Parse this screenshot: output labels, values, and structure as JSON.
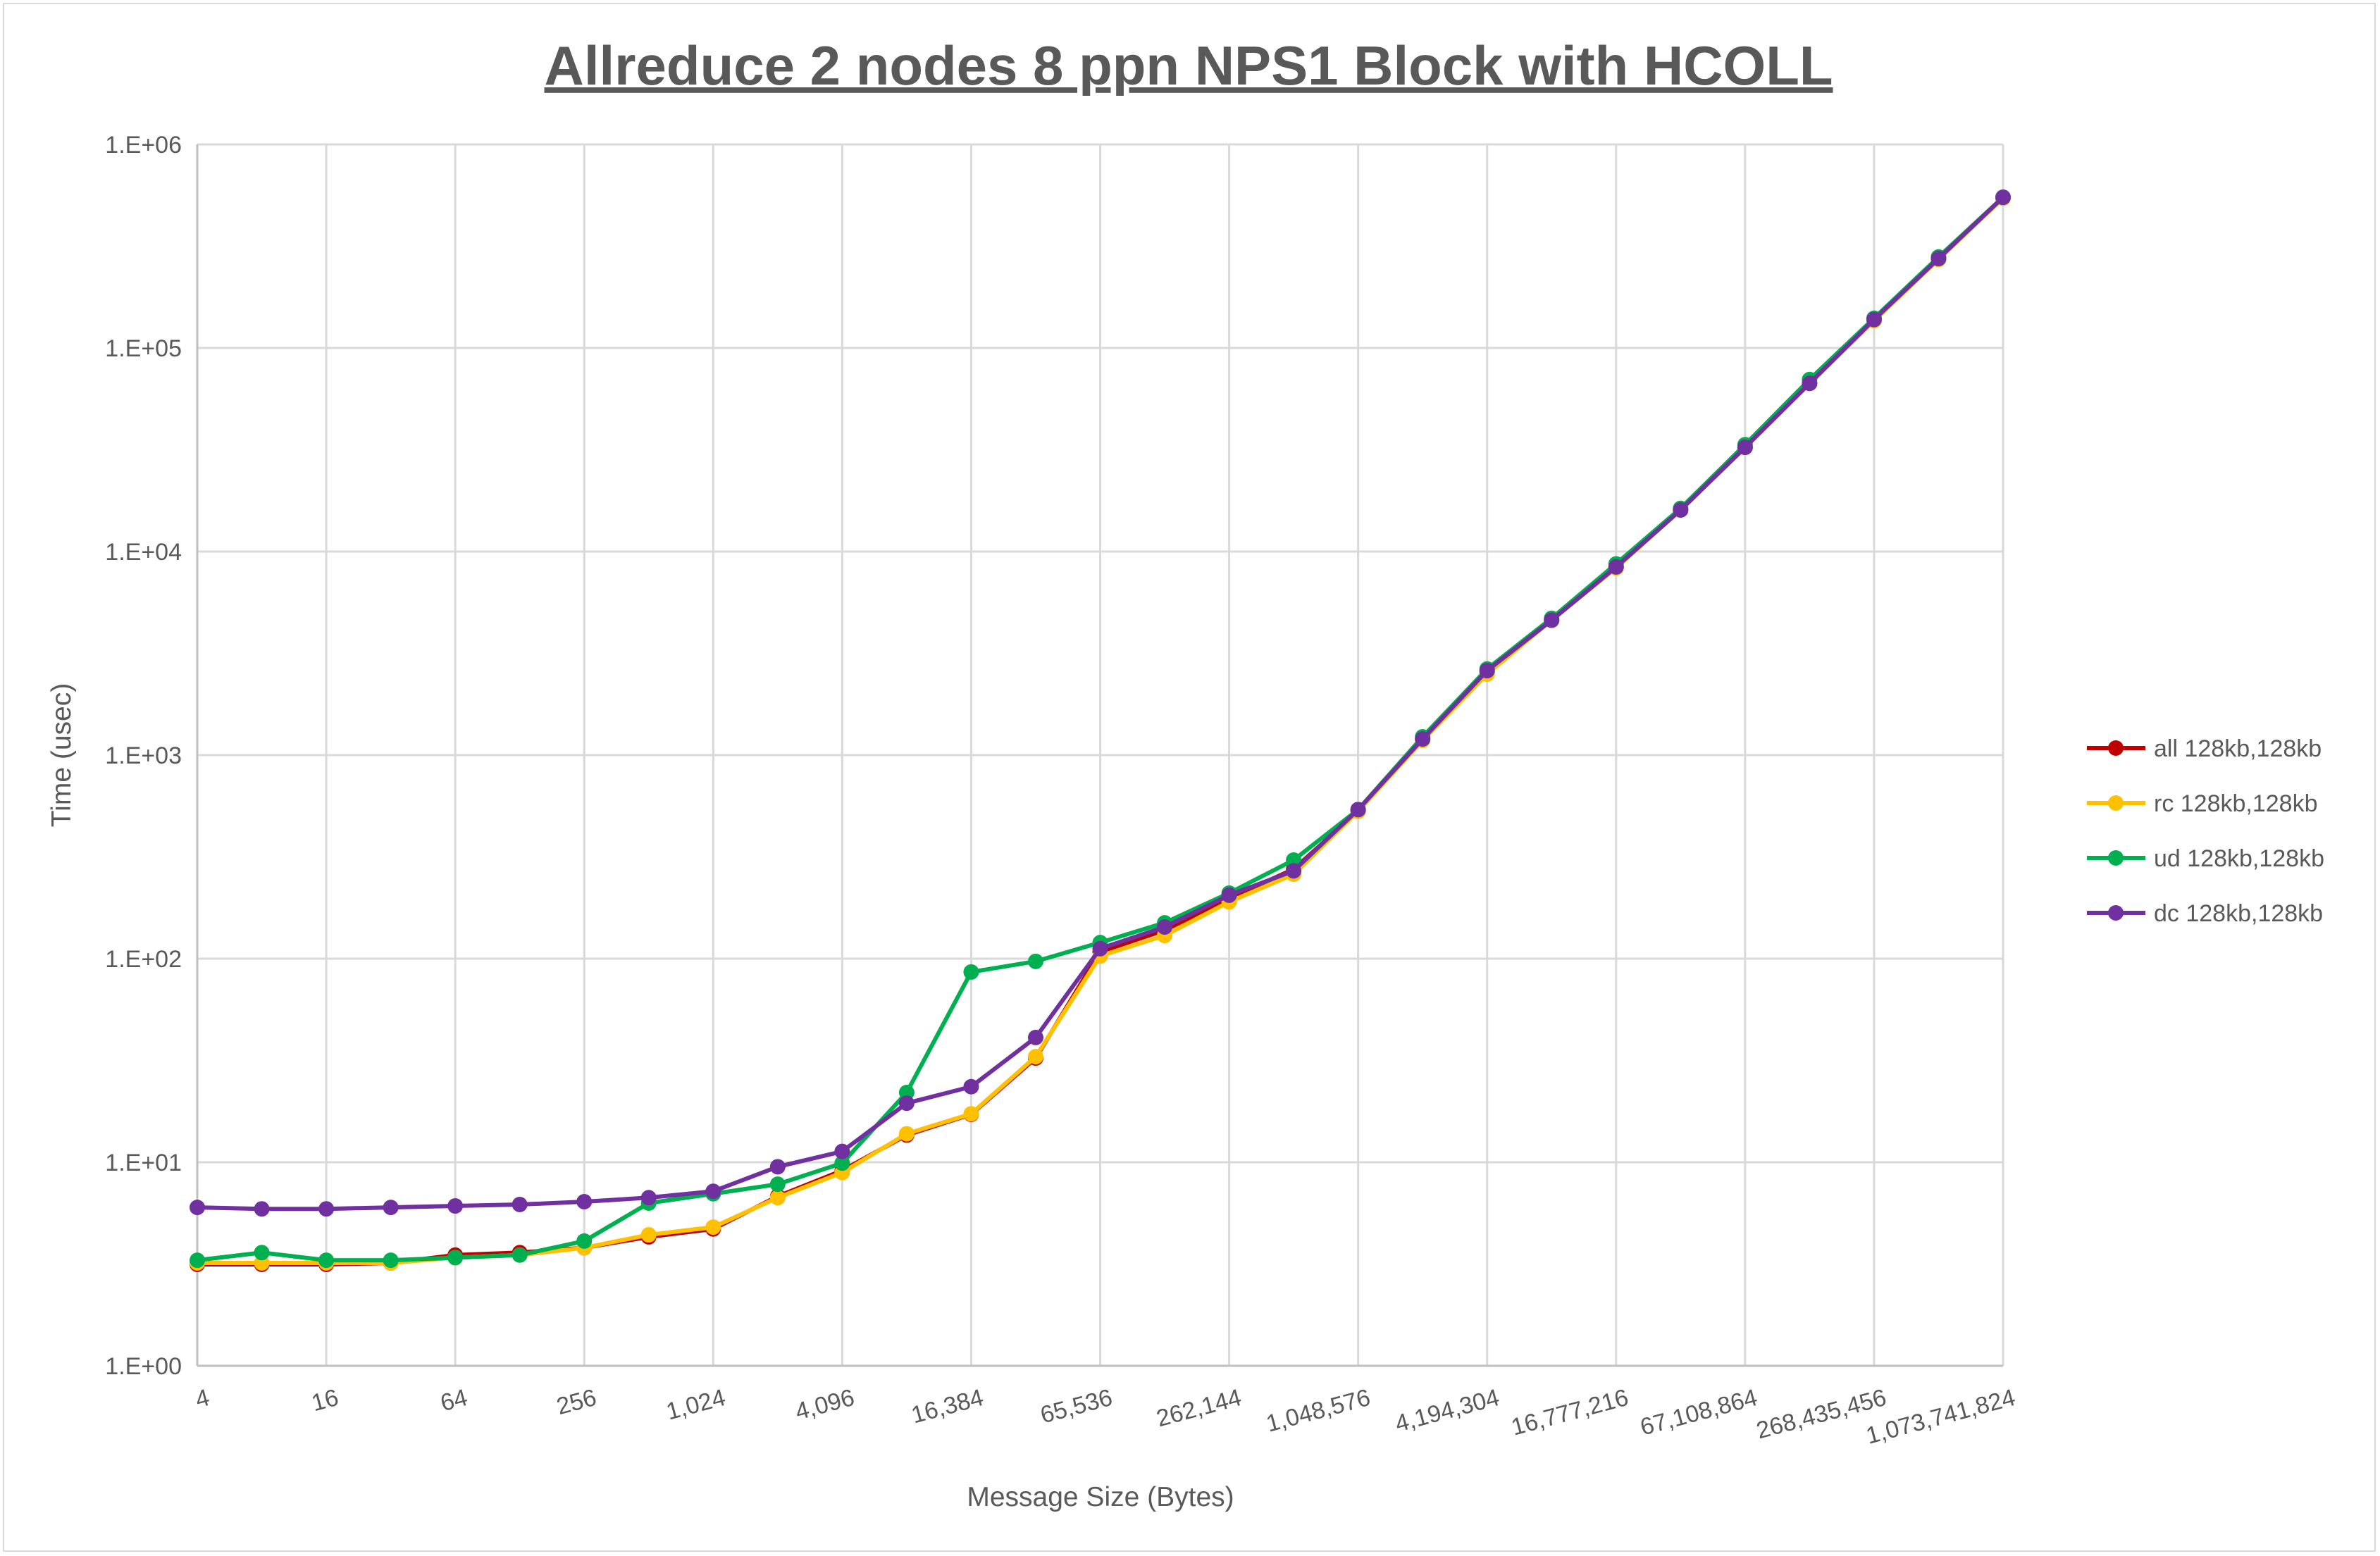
{
  "chart_data": {
    "type": "line",
    "title": "Allreduce 2 nodes 8 ppn NPS1 Block with HCOLL",
    "xlabel": "Message Size (Bytes)",
    "ylabel": "Time (usec)",
    "x_scale": "log2",
    "y_scale": "log10",
    "ylim": [
      1,
      1000000
    ],
    "grid": true,
    "legend_position": "right",
    "y_ticks": [
      "1.E+00",
      "1.E+01",
      "1.E+02",
      "1.E+03",
      "1.E+04",
      "1.E+05",
      "1.E+06"
    ],
    "x_tick_labels": [
      "4",
      "16",
      "64",
      "256",
      "1,024",
      "4,096",
      "16,384",
      "65,536",
      "262,144",
      "1,048,576",
      "4,194,304",
      "16,777,216",
      "67,108,864",
      "268,435,456",
      "1,073,741,824"
    ],
    "x": [
      4,
      8,
      16,
      32,
      64,
      128,
      256,
      512,
      1024,
      2048,
      4096,
      8192,
      16384,
      32768,
      65536,
      131072,
      262144,
      524288,
      1048576,
      2097152,
      4194304,
      8388608,
      16777216,
      33554432,
      67108864,
      134217728,
      268435456,
      536870912,
      1073741824
    ],
    "series": [
      {
        "name": "all 128kb,128kb",
        "color": "#c00000",
        "values": [
          3.15,
          3.15,
          3.15,
          3.2,
          3.5,
          3.6,
          3.8,
          4.3,
          4.7,
          6.8,
          9.1,
          13.6,
          17.2,
          32.5,
          108,
          138,
          198,
          275,
          530,
          1200,
          2550,
          4600,
          8400,
          16000,
          32500,
          67000,
          137000,
          274000,
          545000
        ]
      },
      {
        "name": "rc 128kb,128kb",
        "color": "#ffc000",
        "values": [
          3.2,
          3.2,
          3.2,
          3.2,
          3.4,
          3.5,
          3.8,
          4.4,
          4.8,
          6.7,
          8.9,
          13.8,
          17.3,
          33,
          103,
          130,
          190,
          260,
          530,
          1180,
          2500,
          4600,
          8300,
          16000,
          32500,
          67000,
          136000,
          272000,
          545000
        ]
      },
      {
        "name": "ud 128kb,128kb",
        "color": "#00b050",
        "values": [
          3.3,
          3.6,
          3.3,
          3.3,
          3.4,
          3.5,
          4.1,
          6.3,
          7.0,
          7.8,
          9.9,
          22,
          86,
          97,
          120,
          150,
          210,
          305,
          540,
          1230,
          2650,
          4700,
          8700,
          16300,
          33500,
          70000,
          140000,
          280000,
          550000
        ]
      },
      {
        "name": "dc 128kb,128kb",
        "color": "#7030a0",
        "values": [
          6.0,
          5.9,
          5.9,
          6.0,
          6.1,
          6.2,
          6.4,
          6.7,
          7.2,
          9.5,
          11.3,
          19.5,
          23.5,
          41,
          112,
          143,
          205,
          270,
          540,
          1200,
          2600,
          4600,
          8400,
          16000,
          32500,
          67000,
          138000,
          275000,
          550000
        ]
      }
    ]
  }
}
